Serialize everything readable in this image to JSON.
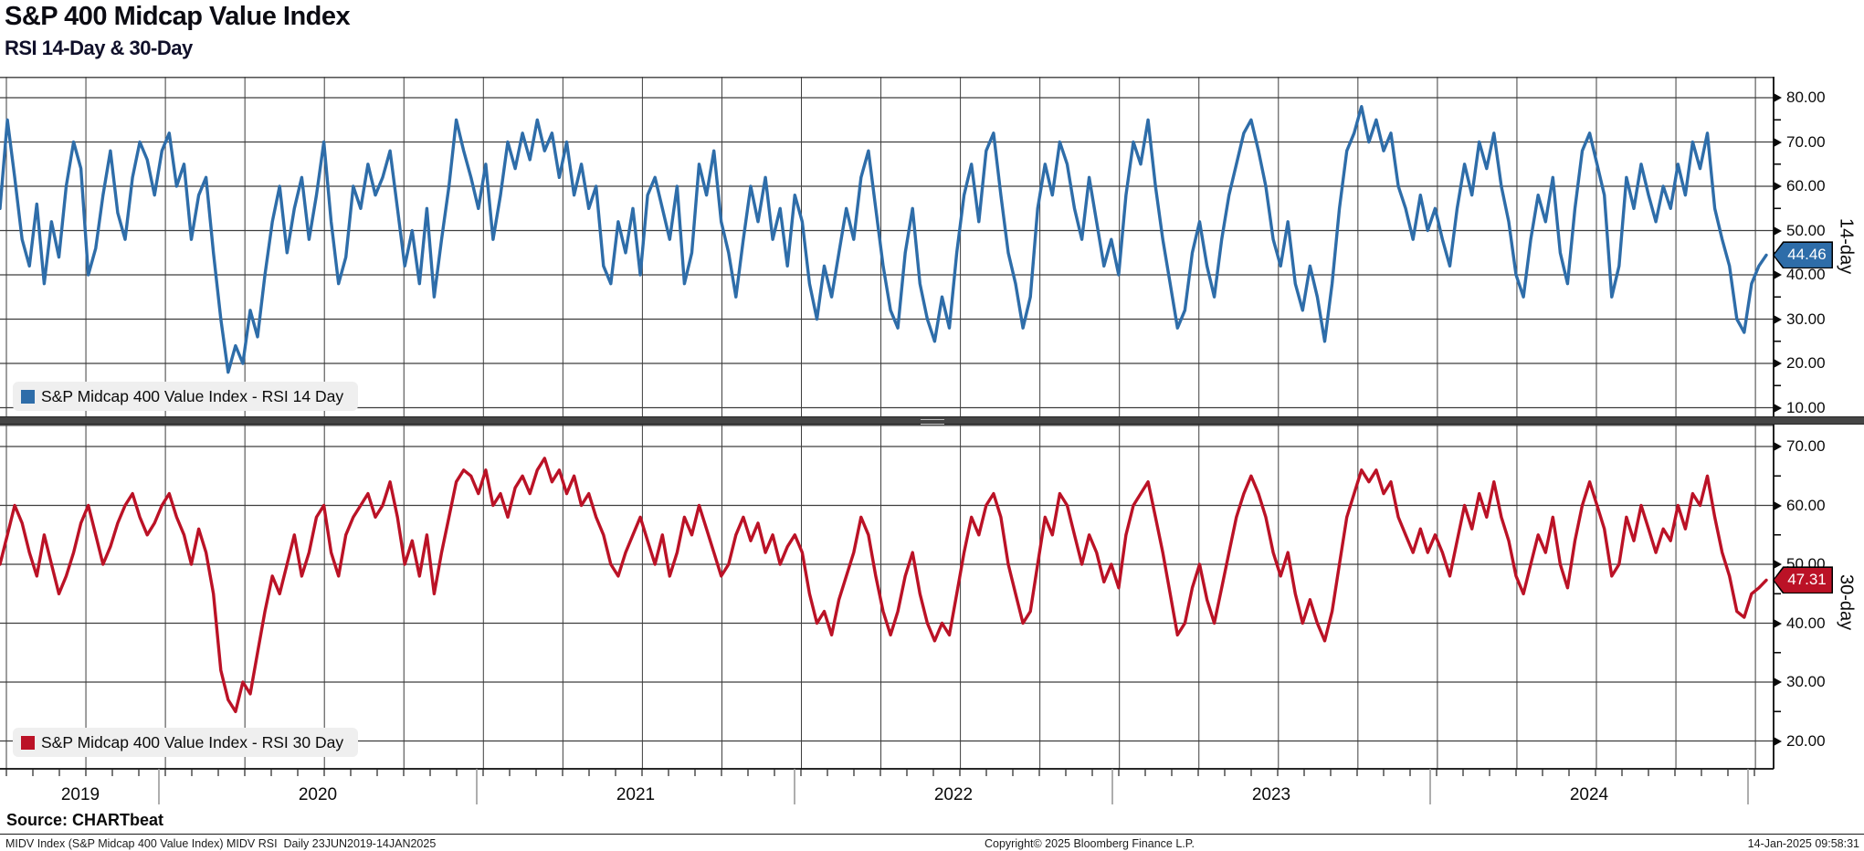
{
  "header": {
    "title": "S&P 400 Midcap Value Index",
    "subtitle": "RSI 14-Day & 30-Day"
  },
  "colors": {
    "rsi14_blue": "#2E6DA9",
    "rsi30_red": "#BB1226",
    "grid": "#3d3d3d",
    "axis": "#0a0a0a",
    "legend_bg": "#efefef",
    "divider": "#454545",
    "year_separator": "#9a9a9a",
    "badge_text": "#ffffff"
  },
  "x_axis": {
    "years": [
      "2019",
      "2020",
      "2021",
      "2022",
      "2023",
      "2024"
    ],
    "range_start": "23JUN2019",
    "range_end": "14JAN2025"
  },
  "chart_data": [
    {
      "type": "line",
      "name": "S&P Midcap 400 Value Index - RSI 14 Day",
      "axis_side_label": "14-day",
      "last_value": 44.46,
      "last_value_label": "44.46",
      "color": "#2E6DA9",
      "ylim": [
        7,
        85
      ],
      "yticks": [
        "80.00",
        "70.00",
        "60.00",
        "50.00",
        "40.00",
        "30.00",
        "20.00",
        "10.00"
      ],
      "ytick_values": [
        80,
        70,
        60,
        50,
        40,
        30,
        20,
        10
      ],
      "minor_ticks": [
        75,
        65,
        55,
        45,
        35,
        25,
        15
      ],
      "grid": true,
      "legend_position": "bottom-left",
      "x_start": "23JUN2019",
      "x_end": "14JAN2025",
      "values": [
        55,
        75,
        62,
        48,
        42,
        56,
        38,
        52,
        44,
        60,
        70,
        64,
        40,
        46,
        58,
        68,
        54,
        48,
        62,
        70,
        66,
        58,
        68,
        72,
        60,
        65,
        48,
        58,
        62,
        45,
        30,
        18,
        24,
        20,
        32,
        26,
        40,
        52,
        60,
        45,
        55,
        62,
        48,
        58,
        70,
        52,
        38,
        44,
        60,
        55,
        65,
        58,
        62,
        68,
        55,
        42,
        50,
        38,
        55,
        35,
        48,
        60,
        75,
        68,
        62,
        55,
        65,
        48,
        58,
        70,
        64,
        72,
        66,
        75,
        68,
        72,
        62,
        70,
        58,
        65,
        55,
        60,
        42,
        38,
        52,
        45,
        55,
        40,
        58,
        62,
        55,
        48,
        60,
        38,
        45,
        65,
        58,
        68,
        52,
        45,
        35,
        48,
        60,
        52,
        62,
        48,
        55,
        42,
        58,
        52,
        38,
        30,
        42,
        35,
        45,
        55,
        48,
        62,
        68,
        55,
        42,
        32,
        28,
        45,
        55,
        38,
        30,
        25,
        35,
        28,
        45,
        58,
        65,
        52,
        68,
        72,
        58,
        45,
        38,
        28,
        35,
        55,
        65,
        58,
        70,
        65,
        55,
        48,
        62,
        52,
        42,
        48,
        40,
        58,
        70,
        65,
        75,
        60,
        48,
        38,
        28,
        32,
        45,
        52,
        42,
        35,
        48,
        58,
        65,
        72,
        75,
        68,
        60,
        48,
        42,
        52,
        38,
        32,
        42,
        35,
        25,
        38,
        55,
        68,
        72,
        78,
        70,
        75,
        68,
        72,
        60,
        55,
        48,
        58,
        50,
        55,
        48,
        42,
        55,
        65,
        58,
        70,
        64,
        72,
        60,
        52,
        40,
        35,
        48,
        58,
        52,
        62,
        45,
        38,
        55,
        68,
        72,
        65,
        58,
        35,
        42,
        62,
        55,
        65,
        58,
        52,
        60,
        55,
        65,
        58,
        70,
        64,
        72,
        55,
        48,
        42,
        30,
        27,
        38,
        42,
        44.46
      ]
    },
    {
      "type": "line",
      "name": "S&P Midcap 400 Value Index - RSI 30 Day",
      "axis_side_label": "30-day",
      "last_value": 47.31,
      "last_value_label": "47.31",
      "color": "#BB1226",
      "ylim": [
        15,
        74
      ],
      "yticks": [
        "70.00",
        "60.00",
        "50.00",
        "40.00",
        "30.00",
        "20.00"
      ],
      "ytick_values": [
        70,
        60,
        50,
        40,
        30,
        20
      ],
      "minor_ticks": [
        65,
        55,
        45,
        35,
        25
      ],
      "grid": true,
      "legend_position": "bottom-left",
      "x_start": "23JUN2019",
      "x_end": "14JAN2025",
      "values": [
        50,
        55,
        60,
        57,
        52,
        48,
        55,
        50,
        45,
        48,
        52,
        57,
        60,
        55,
        50,
        53,
        57,
        60,
        62,
        58,
        55,
        57,
        60,
        62,
        58,
        55,
        50,
        56,
        52,
        45,
        32,
        27,
        25,
        30,
        28,
        35,
        42,
        48,
        45,
        50,
        55,
        48,
        52,
        58,
        60,
        52,
        48,
        55,
        58,
        60,
        62,
        58,
        60,
        64,
        58,
        50,
        54,
        48,
        55,
        45,
        52,
        58,
        64,
        66,
        65,
        62,
        66,
        60,
        62,
        58,
        63,
        65,
        62,
        66,
        68,
        64,
        66,
        62,
        65,
        60,
        62,
        58,
        55,
        50,
        48,
        52,
        55,
        58,
        54,
        50,
        55,
        48,
        52,
        58,
        55,
        60,
        56,
        52,
        48,
        50,
        55,
        58,
        54,
        57,
        52,
        55,
        50,
        53,
        55,
        52,
        45,
        40,
        42,
        38,
        44,
        48,
        52,
        58,
        55,
        48,
        42,
        38,
        42,
        48,
        52,
        45,
        40,
        37,
        40,
        38,
        45,
        52,
        58,
        55,
        60,
        62,
        58,
        50,
        45,
        40,
        42,
        50,
        58,
        55,
        62,
        60,
        55,
        50,
        55,
        52,
        47,
        50,
        46,
        55,
        60,
        62,
        64,
        58,
        52,
        45,
        38,
        40,
        46,
        50,
        44,
        40,
        46,
        52,
        58,
        62,
        65,
        62,
        58,
        52,
        48,
        52,
        45,
        40,
        44,
        40,
        37,
        42,
        50,
        58,
        62,
        66,
        64,
        66,
        62,
        64,
        58,
        55,
        52,
        56,
        52,
        55,
        52,
        48,
        54,
        60,
        56,
        62,
        58,
        64,
        58,
        54,
        48,
        45,
        50,
        55,
        52,
        58,
        50,
        46,
        54,
        60,
        64,
        60,
        56,
        48,
        50,
        58,
        54,
        60,
        56,
        52,
        56,
        54,
        60,
        56,
        62,
        60,
        65,
        58,
        52,
        48,
        42,
        41,
        45,
        46,
        47.31
      ]
    }
  ],
  "legends": {
    "rsi14": "S&P Midcap 400 Value Index - RSI 14 Day",
    "rsi30": "S&P Midcap 400 Value Index - RSI 30 Day"
  },
  "source_line": "Source: CHARTbeat",
  "footer": {
    "left": "MIDV Index (S&P Midcap 400 Value Index) MIDV RSI  Daily 23JUN2019-14JAN2025",
    "center": "Copyright© 2025 Bloomberg Finance L.P.",
    "right": "14-Jan-2025 09:58:31"
  }
}
